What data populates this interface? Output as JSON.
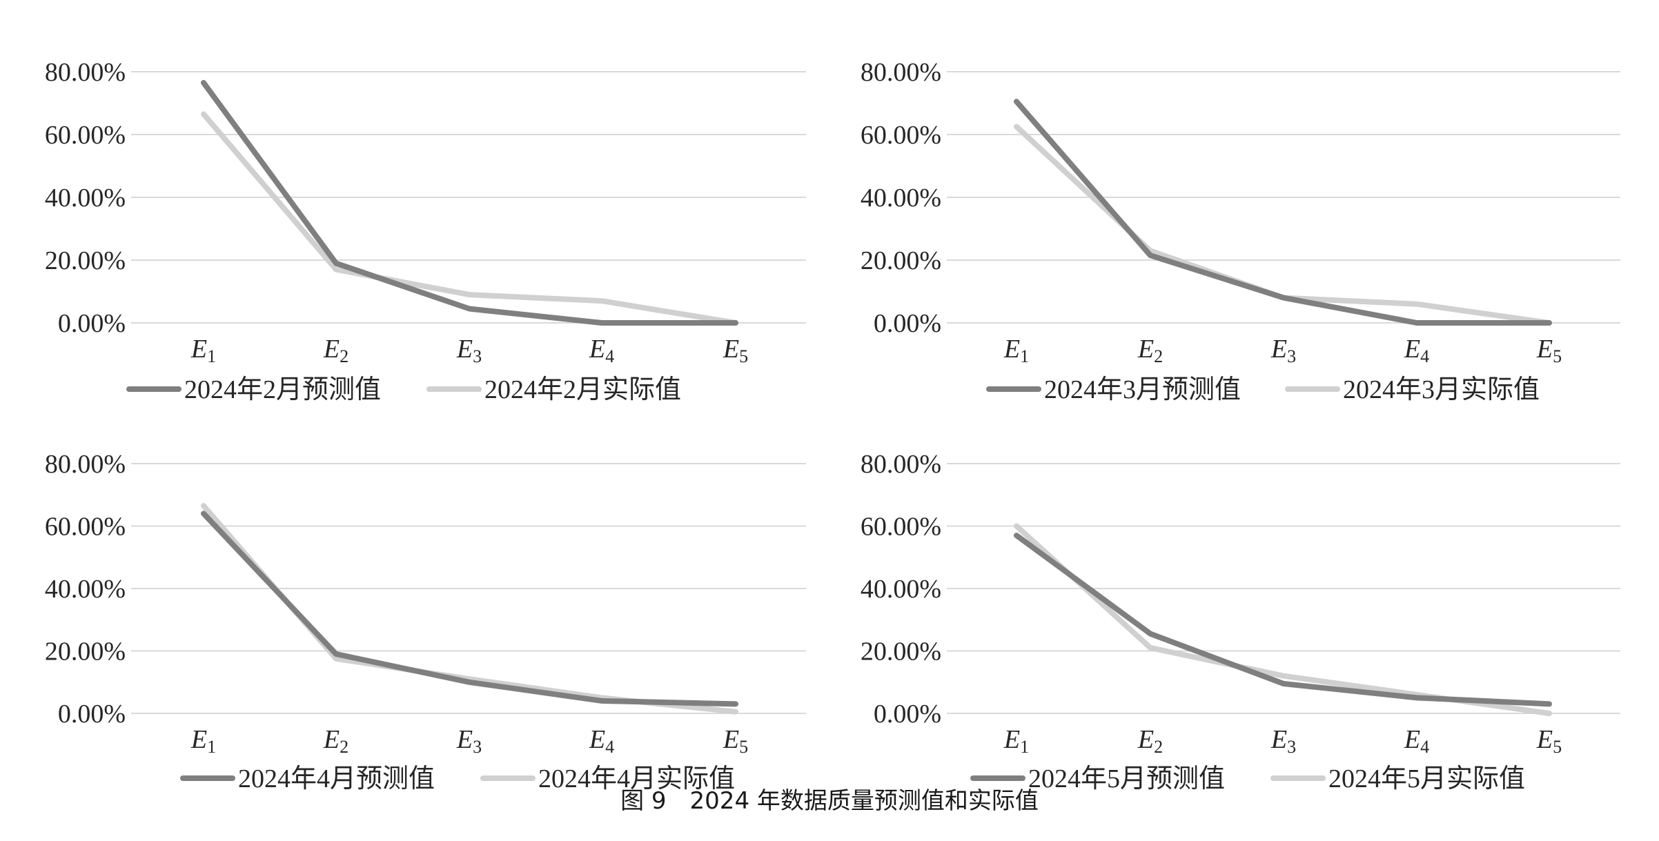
{
  "colors": {
    "predicted": "#7f7f7f",
    "actual": "#d0d0d0",
    "grid": "#d9d9d9",
    "text": "#262626"
  },
  "caption": "图 9　2024 年数据质量预测值和实际值",
  "chart_data": [
    {
      "type": "line",
      "categories": [
        "E1",
        "E2",
        "E3",
        "E4",
        "E5"
      ],
      "category_letters": [
        "E",
        "E",
        "E",
        "E",
        "E"
      ],
      "category_subscripts": [
        "1",
        "2",
        "3",
        "4",
        "5"
      ],
      "y_ticks": [
        "0.00%",
        "20.00%",
        "40.00%",
        "60.00%",
        "80.00%"
      ],
      "y_tick_values": [
        0,
        20,
        40,
        60,
        80
      ],
      "ylim": [
        0,
        80
      ],
      "grid": true,
      "legend_position": "bottom",
      "series": [
        {
          "name": "2024年2月预测值",
          "values": [
            76.5,
            19,
            4.5,
            0,
            0
          ]
        },
        {
          "name": "2024年2月实际值",
          "values": [
            66.5,
            17,
            9,
            7,
            0
          ]
        }
      ]
    },
    {
      "type": "line",
      "categories": [
        "E1",
        "E2",
        "E3",
        "E4",
        "E5"
      ],
      "category_letters": [
        "E",
        "E",
        "E",
        "E",
        "E"
      ],
      "category_subscripts": [
        "1",
        "2",
        "3",
        "4",
        "5"
      ],
      "y_ticks": [
        "0.00%",
        "20.00%",
        "40.00%",
        "60.00%",
        "80.00%"
      ],
      "y_tick_values": [
        0,
        20,
        40,
        60,
        80
      ],
      "ylim": [
        0,
        80
      ],
      "grid": true,
      "legend_position": "bottom",
      "series": [
        {
          "name": "2024年3月预测值",
          "values": [
            70.5,
            21.5,
            8,
            0,
            0
          ]
        },
        {
          "name": "2024年3月实际值",
          "values": [
            62.5,
            23,
            8,
            6,
            0
          ]
        }
      ]
    },
    {
      "type": "line",
      "categories": [
        "E1",
        "E2",
        "E3",
        "E4",
        "E5"
      ],
      "category_letters": [
        "E",
        "E",
        "E",
        "E",
        "E"
      ],
      "category_subscripts": [
        "1",
        "2",
        "3",
        "4",
        "5"
      ],
      "y_ticks": [
        "0.00%",
        "20.00%",
        "40.00%",
        "60.00%",
        "80.00%"
      ],
      "y_tick_values": [
        0,
        20,
        40,
        60,
        80
      ],
      "ylim": [
        0,
        80
      ],
      "grid": true,
      "legend_position": "bottom",
      "series": [
        {
          "name": "2024年4月预测值",
          "values": [
            64,
            19,
            10,
            4,
            3
          ]
        },
        {
          "name": "2024年4月实际值",
          "values": [
            66.5,
            17.5,
            11,
            5,
            0.5
          ]
        }
      ]
    },
    {
      "type": "line",
      "categories": [
        "E1",
        "E2",
        "E3",
        "E4",
        "E5"
      ],
      "category_letters": [
        "E",
        "E",
        "E",
        "E",
        "E"
      ],
      "category_subscripts": [
        "1",
        "2",
        "3",
        "4",
        "5"
      ],
      "y_ticks": [
        "0.00%",
        "20.00%",
        "40.00%",
        "60.00%",
        "80.00%"
      ],
      "y_tick_values": [
        0,
        20,
        40,
        60,
        80
      ],
      "ylim": [
        0,
        80
      ],
      "grid": true,
      "legend_position": "bottom",
      "series": [
        {
          "name": "2024年5月预测值",
          "values": [
            57,
            25.5,
            9.5,
            5,
            3
          ]
        },
        {
          "name": "2024年5月实际值",
          "values": [
            60,
            21,
            12,
            6,
            0
          ]
        }
      ]
    }
  ]
}
